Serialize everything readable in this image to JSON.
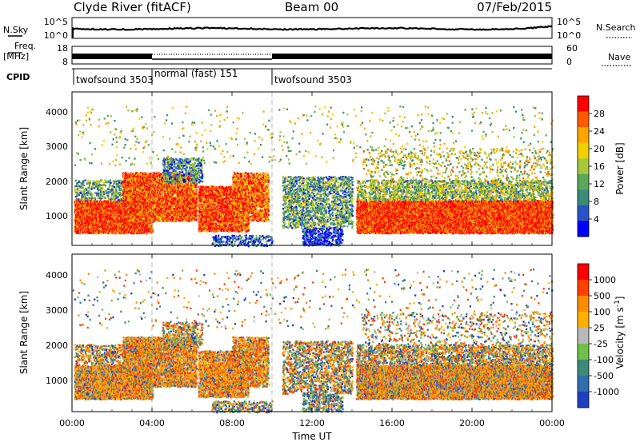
{
  "header": {
    "station": "Clyde River (fitACF)",
    "beam": "Beam 00",
    "date": "07/Feb/2015"
  },
  "top_panels": {
    "nsky_label": "N.Sky",
    "nsky_ticks": [
      "10^5",
      "10^0"
    ],
    "nsearch_ticks": [
      "10^5",
      "10^0"
    ],
    "nsearch_label": "N.Search",
    "freq_label_line1": "Freq.",
    "freq_label_line2": "[MHz]",
    "freq_ticks": [
      "18",
      "8"
    ],
    "nave_ticks": [
      "60",
      "0"
    ],
    "nave_label": "Nave",
    "cpid_label": "CPID",
    "cpid_segments": [
      {
        "label": "twofsound 3503",
        "start_hour": 0,
        "end_hour": 4
      },
      {
        "label": "normal (fast) 151",
        "start_hour": 4,
        "end_hour": 10
      },
      {
        "label": "twofsound 3503",
        "start_hour": 10,
        "end_hour": 24
      }
    ]
  },
  "x_axis": {
    "label": "Time UT",
    "ticks": [
      "00:00",
      "04:00",
      "08:00",
      "12:00",
      "16:00",
      "20:00",
      "00:00"
    ],
    "range_hours": [
      0,
      24
    ]
  },
  "chart_data": [
    {
      "type": "heatmap",
      "name": "power",
      "ylabel": "Slant Range [km]",
      "y_ticks": [
        "1000",
        "2000",
        "3000",
        "4000"
      ],
      "ylim": [
        180,
        4600
      ],
      "colorbar_label": "Power [dB]",
      "colorbar_ticks": [
        "4",
        "8",
        "12",
        "16",
        "20",
        "24",
        "28"
      ],
      "colorbar_range": [
        0,
        32
      ],
      "colors": [
        "#0000ff",
        "#2a53c8",
        "#3c8a7a",
        "#5aa75a",
        "#a8c83c",
        "#f2d000",
        "#ffa500",
        "#ff5a00",
        "#ff0000"
      ]
    },
    {
      "type": "heatmap",
      "name": "velocity",
      "ylabel": "Slant Range [km]",
      "y_ticks": [
        "1000",
        "2000",
        "3000",
        "4000"
      ],
      "ylim": [
        180,
        4600
      ],
      "colorbar_label": "Velocity [m s^-1]",
      "colorbar_ticks": [
        "1000",
        "500",
        "100",
        "25",
        "-25",
        "-100",
        "-500",
        "-1000"
      ],
      "colors": [
        "#1f3fbf",
        "#2f6fb0",
        "#3c8a7a",
        "#6fbf4a",
        "#b8b8b8",
        "#ffb000",
        "#ff8c00",
        "#ff4000",
        "#ff0000"
      ]
    }
  ],
  "scatter_regions": [
    {
      "t0": 0.1,
      "t1": 4.0,
      "r0": 550,
      "r1": 1500,
      "val": 0.9,
      "density": 0.8,
      "pos": 0.25
    },
    {
      "t0": 0.1,
      "t1": 4.0,
      "r0": 1500,
      "r1": 2100,
      "val": 0.35,
      "density": 0.3,
      "pos": 0.4
    },
    {
      "t0": 2.5,
      "t1": 6.2,
      "r0": 900,
      "r1": 2300,
      "val": 0.85,
      "density": 0.6,
      "pos": 0.25
    },
    {
      "t0": 4.5,
      "t1": 6.5,
      "r0": 2000,
      "r1": 2700,
      "val": 0.3,
      "density": 0.3,
      "pos": 0.5
    },
    {
      "t0": 6.3,
      "t1": 8.8,
      "r0": 600,
      "r1": 1900,
      "val": 0.9,
      "density": 0.6,
      "pos": 0.2
    },
    {
      "t0": 8.0,
      "t1": 9.8,
      "r0": 900,
      "r1": 2300,
      "val": 0.8,
      "density": 0.5,
      "pos": 0.2
    },
    {
      "t0": 7.0,
      "t1": 10.0,
      "r0": 180,
      "r1": 500,
      "val": 0.2,
      "density": 0.3,
      "pos": 0.6
    },
    {
      "t0": 10.5,
      "t1": 14.0,
      "r0": 700,
      "r1": 2200,
      "val": 0.35,
      "density": 0.3,
      "pos": 0.5
    },
    {
      "t0": 11.5,
      "t1": 13.5,
      "r0": 200,
      "r1": 700,
      "val": 0.1,
      "density": 0.35,
      "pos": 0.7
    },
    {
      "t0": 14.2,
      "t1": 24.0,
      "r0": 550,
      "r1": 1500,
      "val": 0.9,
      "density": 0.85,
      "pos": 0.3
    },
    {
      "t0": 14.2,
      "t1": 24.0,
      "r0": 1500,
      "r1": 2100,
      "val": 0.45,
      "density": 0.35,
      "pos": 0.45
    },
    {
      "t0": 14.5,
      "t1": 24.0,
      "r0": 2100,
      "r1": 3000,
      "val": 0.55,
      "density": 0.08,
      "pos": 0.45
    },
    {
      "t0": 0.0,
      "t1": 24.0,
      "r0": 2500,
      "r1": 4200,
      "val": 0.5,
      "density": 0.015,
      "pos": 0.5
    }
  ]
}
